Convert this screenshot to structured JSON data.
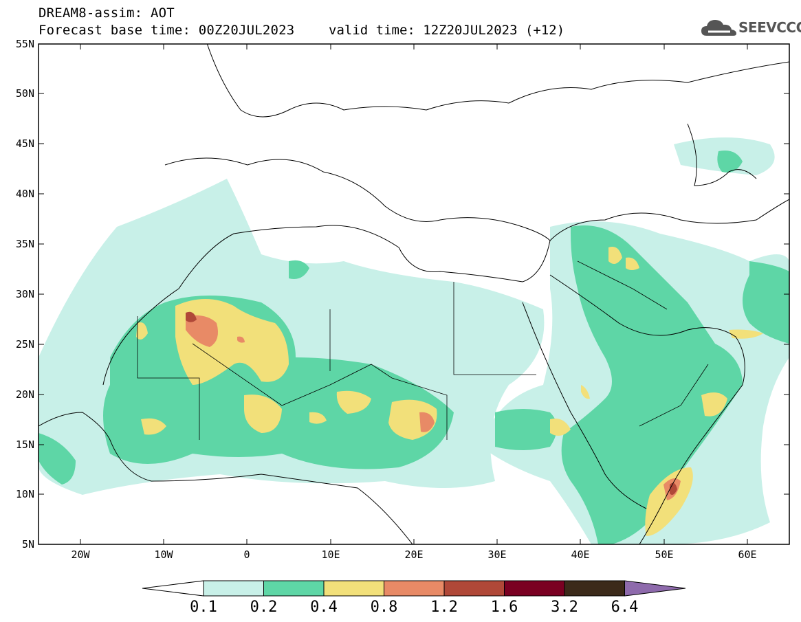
{
  "title": {
    "line1": "DREAM8-assim: AOT",
    "line2": "Forecast base time: 00Z20JUL2023",
    "valid": "valid time: 12Z20JUL2023 (+12)"
  },
  "logo": {
    "text": "SEEVCCC",
    "icon": "cloud-icon"
  },
  "axes": {
    "lat_labels": [
      "55N",
      "50N",
      "45N",
      "40N",
      "35N",
      "30N",
      "25N",
      "20N",
      "15N",
      "10N",
      "5N"
    ],
    "lon_labels": [
      "20W",
      "10W",
      "0",
      "10E",
      "20E",
      "30E",
      "40E",
      "50E",
      "60E"
    ],
    "lon_range": [
      -25,
      65
    ],
    "lat_range": [
      5,
      55
    ]
  },
  "colorbar": {
    "ticks": [
      "0.1",
      "0.2",
      "0.4",
      "0.8",
      "1.2",
      "1.6",
      "3.2",
      "6.4"
    ],
    "colors": [
      "#c8f0e8",
      "#5ed6a6",
      "#f2e07a",
      "#e88a66",
      "#b04838",
      "#7a0022",
      "#3c2a1a"
    ],
    "under_color": "#ffffff",
    "over_color": "#8e6aac"
  },
  "colors": {
    "light": "#c8f0e8",
    "green": "#5ed6a6",
    "yellow": "#f2e07a",
    "orange": "#e88a66",
    "red": "#b04838"
  }
}
